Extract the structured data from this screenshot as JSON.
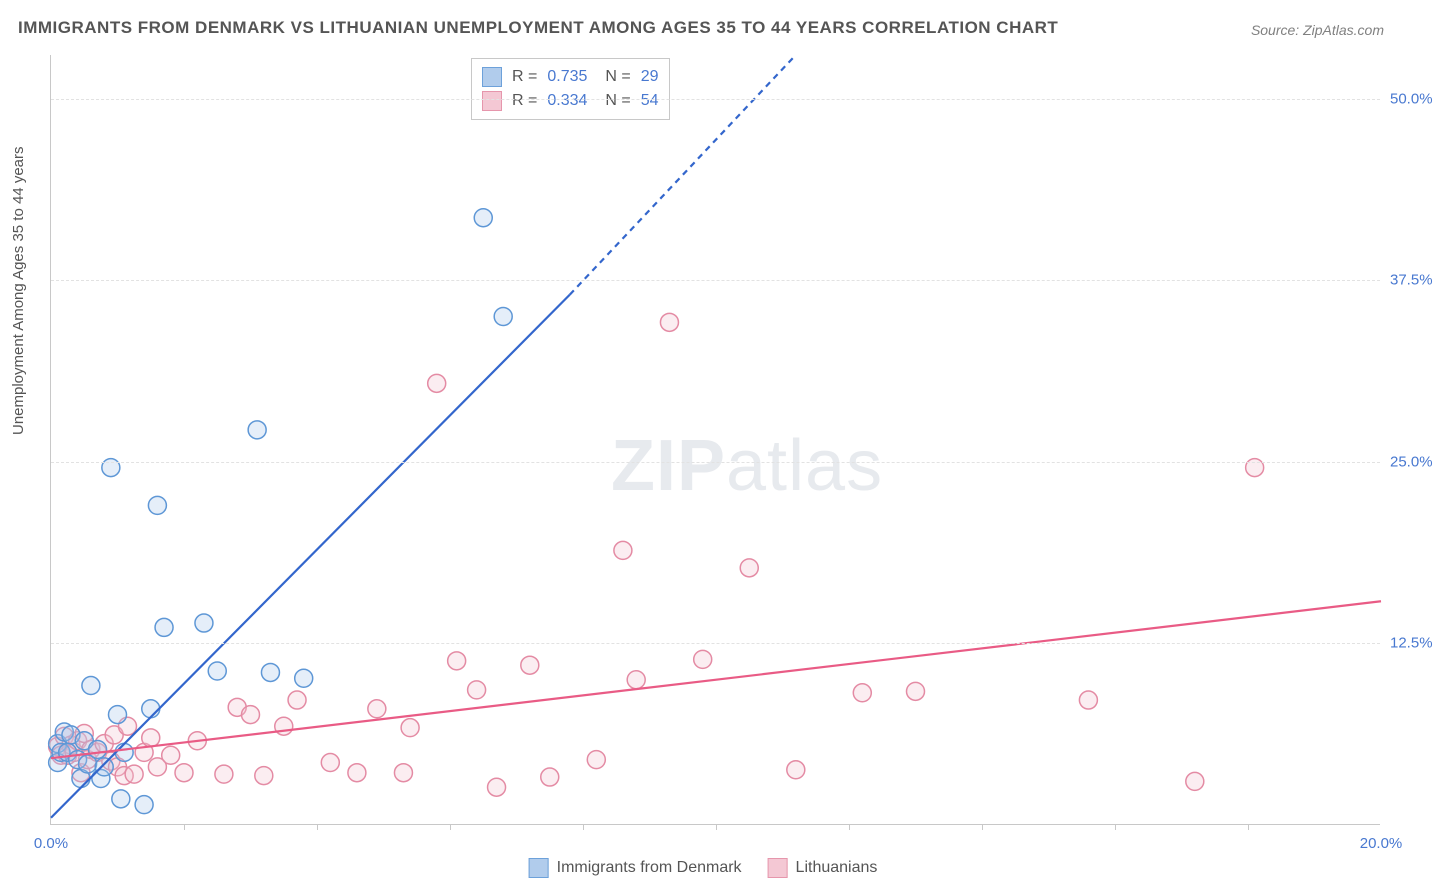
{
  "title": "IMMIGRANTS FROM DENMARK VS LITHUANIAN UNEMPLOYMENT AMONG AGES 35 TO 44 YEARS CORRELATION CHART",
  "source": "Source: ZipAtlas.com",
  "watermark_zip": "ZIP",
  "watermark_atlas": "atlas",
  "chart": {
    "type": "scatter",
    "y_axis_label": "Unemployment Among Ages 35 to 44 years",
    "xlim": [
      0,
      20
    ],
    "ylim": [
      0,
      53
    ],
    "x_ticks": [
      0,
      20
    ],
    "x_tick_labels": [
      "0.0%",
      "20.0%"
    ],
    "x_minor_ticks": [
      2,
      4,
      6,
      8,
      10,
      12,
      14,
      16,
      18
    ],
    "y_ticks": [
      12.5,
      25,
      37.5,
      50
    ],
    "y_tick_labels": [
      "12.5%",
      "25.0%",
      "37.5%",
      "50.0%"
    ],
    "background_color": "#ffffff",
    "grid_color": "#e2e2e2",
    "axis_color": "#c8c8c8",
    "tick_label_color": "#4878d0",
    "tick_label_fontsize": 15,
    "axis_label_color": "#555555",
    "marker_radius": 9,
    "marker_stroke_width": 1.5,
    "marker_fill_opacity": 0.3,
    "line_width": 2.2,
    "series": [
      {
        "name": "Immigrants from Denmark",
        "color_stroke": "#5e97d6",
        "color_fill": "#a9c7ea",
        "line_color": "#3366cc",
        "R": "0.735",
        "N": "29",
        "trend_solid": {
          "x1": 0,
          "y1": 0.5,
          "x2": 7.8,
          "y2": 36.5
        },
        "trend_dashed": {
          "x1": 7.8,
          "y1": 36.5,
          "x2": 11.2,
          "y2": 53
        },
        "points": [
          [
            0.1,
            5.6
          ],
          [
            0.1,
            4.3
          ],
          [
            0.15,
            5.0
          ],
          [
            0.2,
            6.4
          ],
          [
            0.3,
            6.2
          ],
          [
            0.25,
            5.0
          ],
          [
            0.4,
            4.5
          ],
          [
            0.45,
            3.2
          ],
          [
            0.5,
            5.8
          ],
          [
            0.55,
            4.2
          ],
          [
            0.6,
            9.6
          ],
          [
            0.7,
            5.2
          ],
          [
            0.75,
            3.2
          ],
          [
            0.8,
            4.0
          ],
          [
            0.9,
            24.6
          ],
          [
            1.0,
            7.6
          ],
          [
            1.05,
            1.8
          ],
          [
            1.1,
            5.0
          ],
          [
            1.4,
            1.4
          ],
          [
            1.5,
            8.0
          ],
          [
            1.6,
            22.0
          ],
          [
            1.7,
            13.6
          ],
          [
            2.3,
            13.9
          ],
          [
            2.5,
            10.6
          ],
          [
            3.1,
            27.2
          ],
          [
            3.3,
            10.5
          ],
          [
            3.8,
            10.1
          ],
          [
            6.5,
            41.8
          ],
          [
            6.8,
            35.0
          ]
        ]
      },
      {
        "name": "Lithuanians",
        "color_stroke": "#e48ba4",
        "color_fill": "#f3c3d0",
        "line_color": "#e95b85",
        "R": "0.334",
        "N": "54",
        "trend_solid": {
          "x1": 0,
          "y1": 4.6,
          "x2": 20,
          "y2": 15.4
        },
        "points": [
          [
            0.1,
            5.4
          ],
          [
            0.15,
            4.8
          ],
          [
            0.2,
            6.1
          ],
          [
            0.25,
            4.8
          ],
          [
            0.3,
            5.5
          ],
          [
            0.35,
            5.0
          ],
          [
            0.4,
            5.8
          ],
          [
            0.45,
            3.6
          ],
          [
            0.5,
            6.3
          ],
          [
            0.55,
            4.5
          ],
          [
            0.6,
            5.2
          ],
          [
            0.7,
            5.0
          ],
          [
            0.8,
            5.6
          ],
          [
            0.9,
            4.4
          ],
          [
            0.95,
            6.2
          ],
          [
            1.0,
            4.0
          ],
          [
            1.1,
            3.4
          ],
          [
            1.15,
            6.8
          ],
          [
            1.25,
            3.5
          ],
          [
            1.4,
            5.0
          ],
          [
            1.5,
            6.0
          ],
          [
            1.6,
            4.0
          ],
          [
            1.8,
            4.8
          ],
          [
            2.0,
            3.6
          ],
          [
            2.2,
            5.8
          ],
          [
            2.6,
            3.5
          ],
          [
            2.8,
            8.1
          ],
          [
            3.0,
            7.6
          ],
          [
            3.2,
            3.4
          ],
          [
            3.5,
            6.8
          ],
          [
            3.7,
            8.6
          ],
          [
            4.2,
            4.3
          ],
          [
            4.6,
            3.6
          ],
          [
            4.9,
            8.0
          ],
          [
            5.3,
            3.6
          ],
          [
            5.4,
            6.7
          ],
          [
            5.8,
            30.4
          ],
          [
            6.1,
            11.3
          ],
          [
            6.4,
            9.3
          ],
          [
            6.7,
            2.6
          ],
          [
            7.2,
            11.0
          ],
          [
            7.5,
            3.3
          ],
          [
            8.2,
            4.5
          ],
          [
            8.6,
            18.9
          ],
          [
            8.8,
            10.0
          ],
          [
            9.3,
            34.6
          ],
          [
            9.8,
            11.4
          ],
          [
            10.5,
            17.7
          ],
          [
            11.2,
            3.8
          ],
          [
            12.2,
            9.1
          ],
          [
            13.0,
            9.2
          ],
          [
            15.6,
            8.6
          ],
          [
            17.2,
            3.0
          ],
          [
            18.1,
            24.6
          ]
        ]
      }
    ]
  },
  "correlation_legend": {
    "R_label": "R =",
    "N_label": "N ="
  },
  "bottom_legend": {
    "series1_label": "Immigrants from Denmark",
    "series2_label": "Lithuanians"
  }
}
